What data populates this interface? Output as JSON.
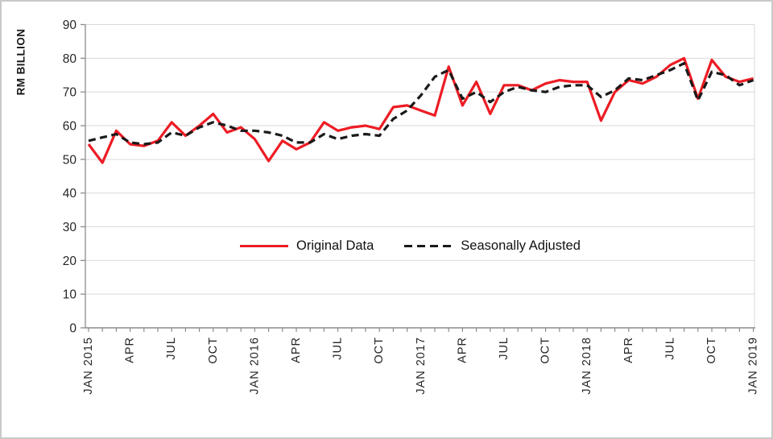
{
  "figure": {
    "ylabel": "RM BILLION"
  },
  "chart_data": {
    "type": "line",
    "title": "",
    "xlabel": "",
    "ylabel": "RM BILLION",
    "ylim": [
      0,
      90
    ],
    "ytick_step": 10,
    "grid": true,
    "legend_position": "inside-center",
    "x": [
      "JAN 2015",
      "FEB 2015",
      "MAR 2015",
      "APR 2015",
      "MAY 2015",
      "JUN 2015",
      "JUL 2015",
      "AUG 2015",
      "SEP 2015",
      "OCT 2015",
      "NOV 2015",
      "DEC 2015",
      "JAN 2016",
      "FEB 2016",
      "MAR 2016",
      "APR 2016",
      "MAY 2016",
      "JUN 2016",
      "JUL 2016",
      "AUG 2016",
      "SEP 2016",
      "OCT 2016",
      "NOV 2016",
      "DEC 2016",
      "JAN 2017",
      "FEB 2017",
      "MAR 2017",
      "APR 2017",
      "MAY 2017",
      "JUN 2017",
      "JUL 2017",
      "AUG 2017",
      "SEP 2017",
      "OCT 2017",
      "NOV 2017",
      "DEC 2017",
      "JAN 2018",
      "FEB 2018",
      "MAR 2018",
      "APR 2018",
      "MAY 2018",
      "JUN 2018",
      "JUL 2018",
      "AUG 2018",
      "SEP 2018",
      "OCT 2018",
      "NOV 2018",
      "DEC 2018",
      "JAN 2019"
    ],
    "xtick_labels": [
      "JAN 2015",
      "APR",
      "JUL",
      "OCT",
      "JAN 2016",
      "APR",
      "JUL",
      "OCT",
      "JAN 2017",
      "APR",
      "JUL",
      "OCT",
      "JAN 2018",
      "APR",
      "JUL",
      "OCT",
      "JAN 2019"
    ],
    "xtick_every": 3,
    "series": [
      {
        "name": "Original Data",
        "color": "#ED1C24",
        "dash": "solid",
        "values": [
          54.5,
          49,
          58.5,
          54.5,
          54,
          55.5,
          61,
          57,
          60,
          63.5,
          58,
          59.5,
          56,
          49.5,
          55.5,
          53,
          55,
          61,
          58.5,
          59.5,
          60,
          59,
          65.5,
          66,
          64.5,
          63,
          77.5,
          66,
          73,
          63.5,
          72,
          72,
          70.5,
          72.5,
          73.5,
          73,
          73,
          61.5,
          70,
          73.5,
          72.5,
          74.5,
          78,
          80,
          68,
          79.5,
          74.5,
          73,
          74
        ]
      },
      {
        "name": "Seasonally Adjusted",
        "color": "#1A1A1A",
        "dash": "dashed",
        "values": [
          55.5,
          56.5,
          57.5,
          55,
          54.5,
          55,
          58,
          57,
          59.5,
          61,
          60,
          58.5,
          58.5,
          58,
          57,
          55,
          55,
          57.5,
          56,
          57,
          57.5,
          57,
          62,
          64.5,
          69,
          74.5,
          76.5,
          68,
          70,
          67,
          70,
          71.5,
          70.5,
          70,
          71.5,
          72,
          72,
          68.5,
          70.5,
          74,
          73.5,
          75,
          76.5,
          78.5,
          67.5,
          76,
          75,
          72,
          73.5
        ]
      }
    ],
    "axis_color": "#8C8C8C",
    "gridline_color": "#D9D9D9"
  }
}
